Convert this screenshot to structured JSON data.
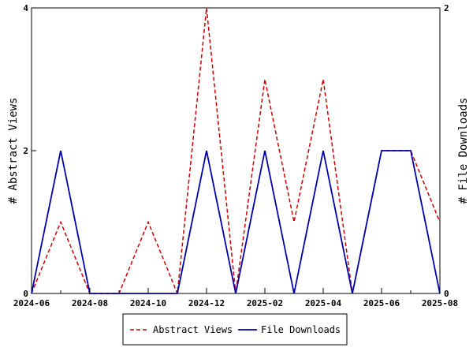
{
  "chart_data": {
    "type": "line",
    "title": "",
    "x": [
      "2024-06",
      "2024-07",
      "2024-08",
      "2024-09",
      "2024-10",
      "2024-11",
      "2024-12",
      "2025-01",
      "2025-02",
      "2025-03",
      "2025-04",
      "2025-05",
      "2025-06",
      "2025-07",
      "2025-08"
    ],
    "x_tick_labels": [
      "2024-06",
      "2024-08",
      "2024-10",
      "2024-12",
      "2025-02",
      "2025-04",
      "2025-06",
      "2025-08"
    ],
    "xlim": [
      "2024-06",
      "2025-08"
    ],
    "grid": false,
    "legend_placement": "bottom-center",
    "y_left": {
      "label": "# Abstract Views",
      "ylim": [
        0,
        4
      ],
      "ticks": [
        0,
        2,
        4
      ]
    },
    "y_right": {
      "label": "# File Downloads",
      "ylim": [
        0,
        2
      ],
      "ticks": [
        0,
        2
      ]
    },
    "series": [
      {
        "name": "Abstract Views",
        "axis": "left",
        "color": "#cc0000",
        "style": "dashed",
        "values": [
          0,
          1,
          0,
          0,
          1,
          0,
          4,
          0,
          3,
          1,
          3,
          0,
          2,
          2,
          1
        ]
      },
      {
        "name": "File Downloads",
        "axis": "right",
        "color": "#0000aa",
        "style": "solid",
        "values": [
          0,
          1,
          0,
          0,
          0,
          0,
          1,
          0,
          1,
          0,
          1,
          0,
          1,
          1,
          0
        ]
      }
    ]
  }
}
